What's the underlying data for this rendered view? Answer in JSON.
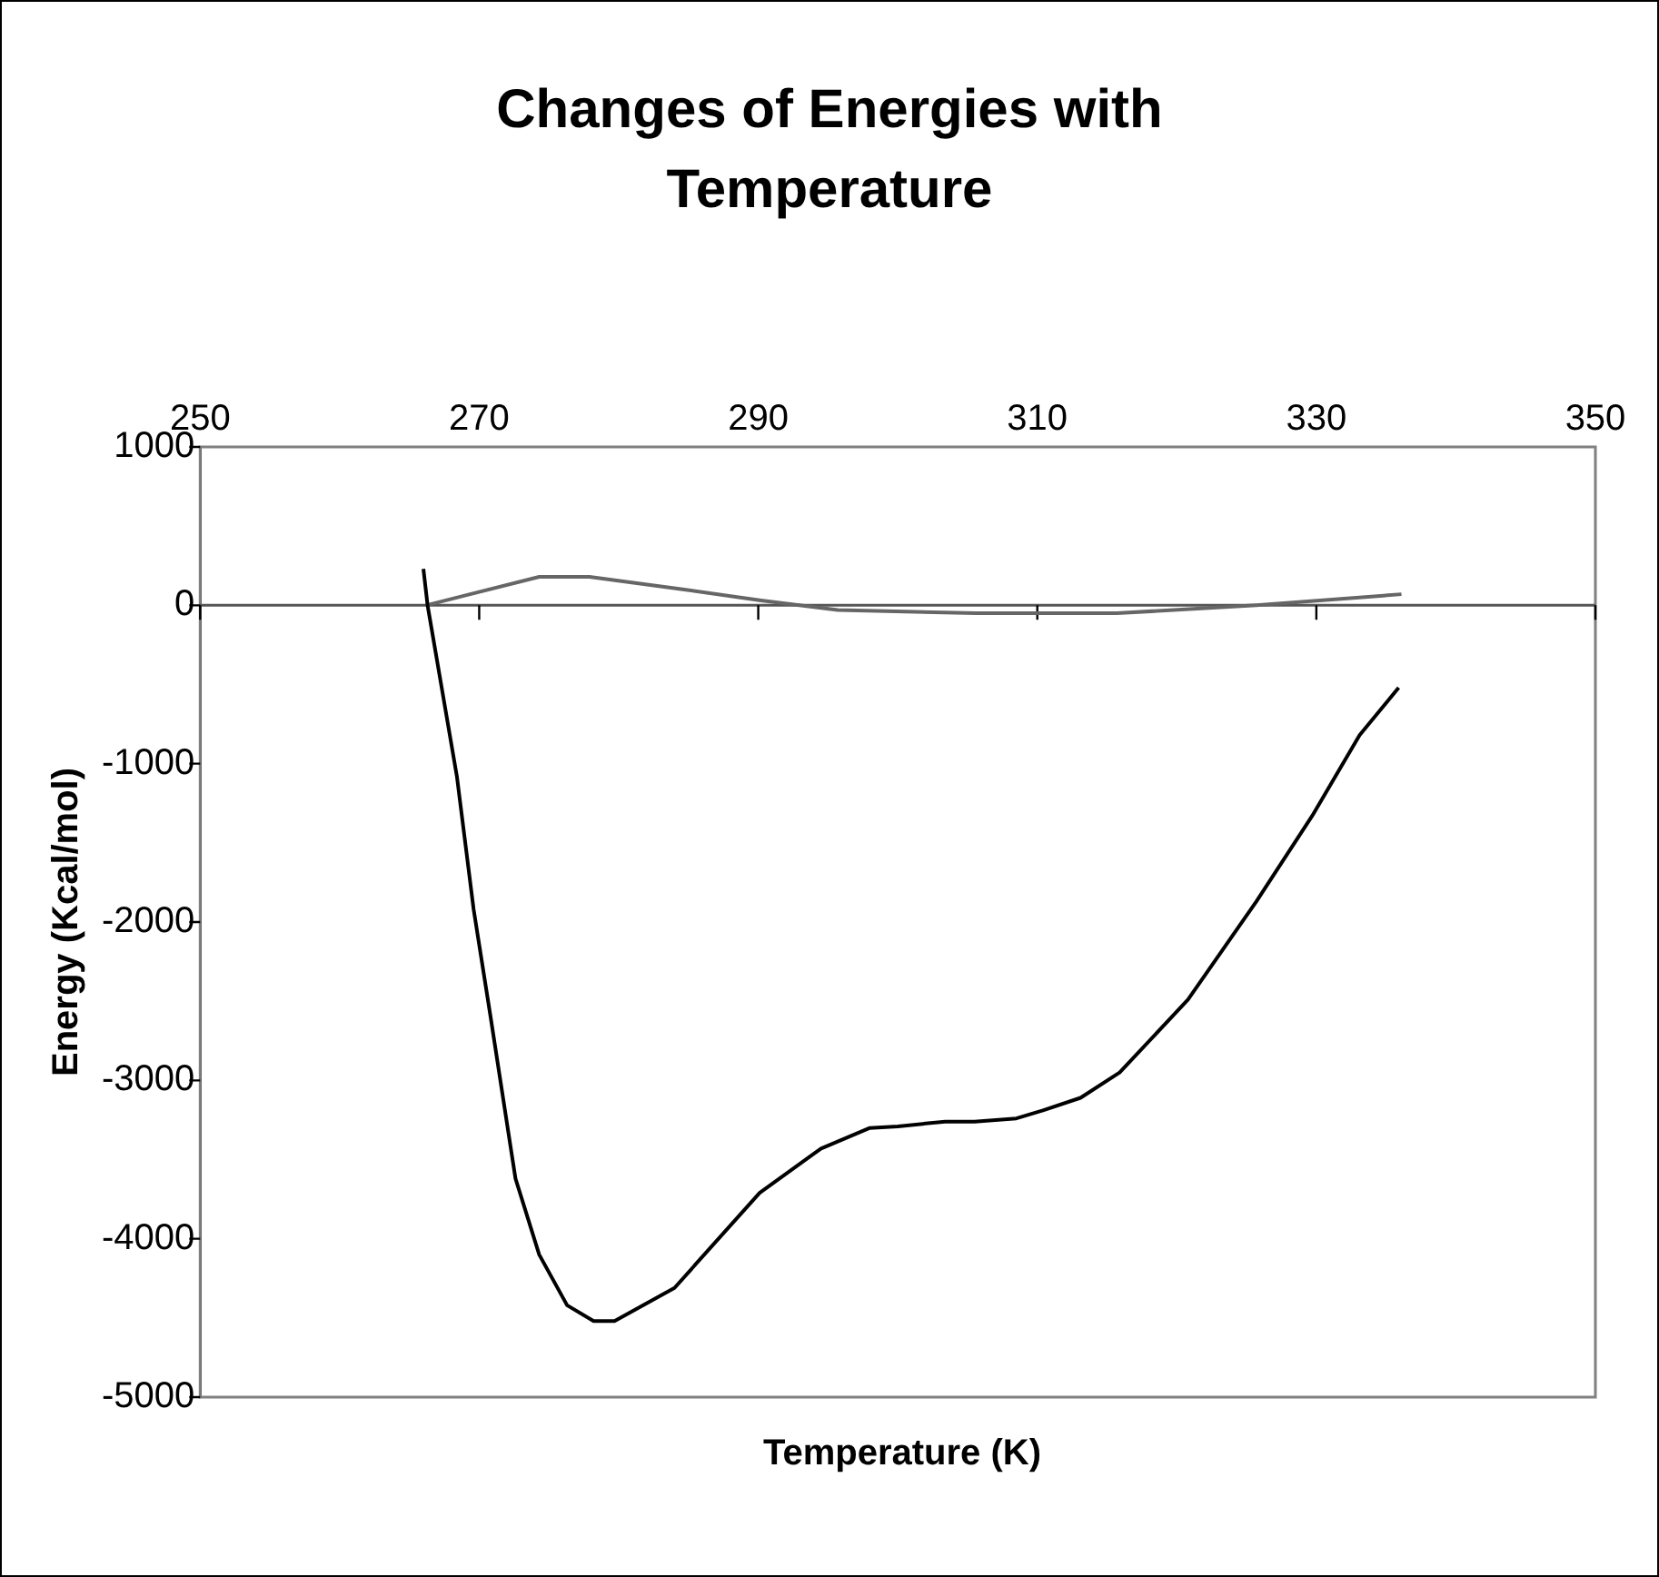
{
  "chart_data": {
    "type": "line",
    "title": "Changes of Energies with Temperature",
    "xlabel": "Temperature (K)",
    "ylabel": "Energy (Kcal/mol)",
    "xlim": [
      250,
      350
    ],
    "xticks": [
      250,
      270,
      290,
      310,
      330,
      350
    ],
    "ylim": [
      -5000,
      1000
    ],
    "yticks": [
      -5000,
      -4000,
      -3000,
      -2000,
      -1000,
      0,
      1000
    ],
    "grid": false,
    "ref_lines": [
      {
        "axis": "y",
        "value": 0,
        "color": "#555555"
      }
    ],
    "marker": "none",
    "line_style": "solid",
    "series": [
      {
        "color": "#000000",
        "x": [
          266.0,
          266.3,
          268.4,
          269.6,
          270.8,
          272.6,
          274.3,
          276.3,
          278.2,
          279.7,
          284.0,
          290.1,
          294.5,
          298.0,
          300.0,
          303.4,
          305.5,
          308.5,
          310.4,
          313.1,
          315.9,
          320.8,
          325.7,
          329.7,
          333.1,
          335.9
        ],
        "values": [
          230,
          0,
          -1080,
          -1920,
          -2590,
          -3620,
          -4100,
          -4420,
          -4520,
          -4520,
          -4310,
          -3710,
          -3430,
          -3300,
          -3290,
          -3260,
          -3260,
          -3240,
          -3190,
          -3110,
          -2950,
          -2490,
          -1870,
          -1330,
          -820,
          -520
        ]
      },
      {
        "color": "#666666",
        "x": [
          266.2,
          274.3,
          277.9,
          284.7,
          290.2,
          295.7,
          305.6,
          315.7,
          325.7,
          336.1
        ],
        "values": [
          0,
          180,
          180,
          100,
          30,
          -30,
          -50,
          -50,
          0,
          70
        ]
      }
    ]
  }
}
